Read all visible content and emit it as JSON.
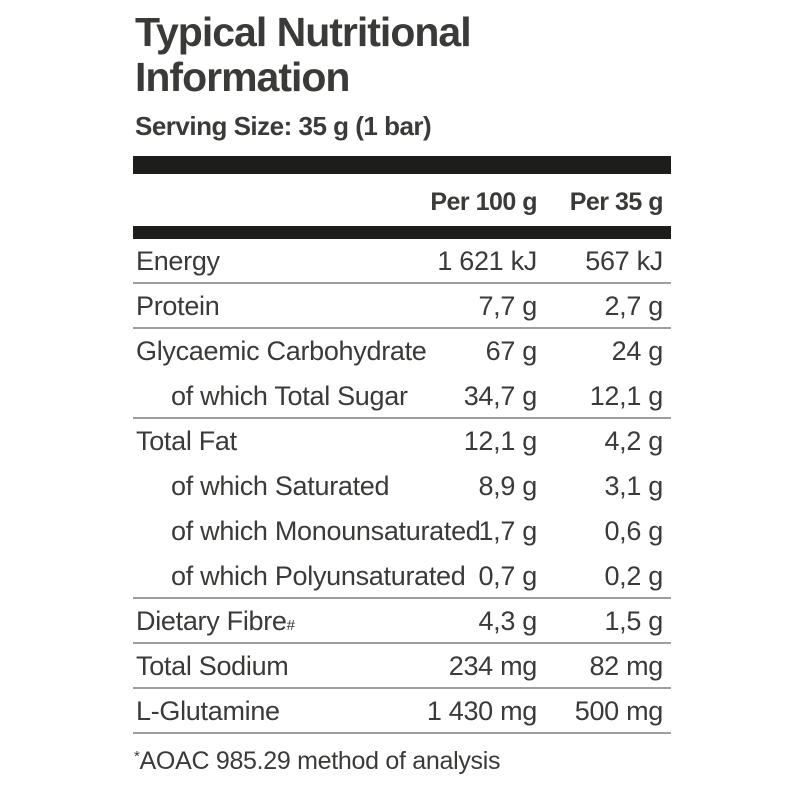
{
  "page": {
    "title": "Typical Nutritional Information",
    "serving_size": "Serving Size: 35 g (1 bar)"
  },
  "table": {
    "col_headers": {
      "per_100": "Per 100 g",
      "per_35": "Per 35 g"
    },
    "rows": [
      {
        "label": "Energy",
        "indent": false,
        "per100": "1 621 kJ",
        "per35": "567 kJ",
        "divider_after": true
      },
      {
        "label": "Protein",
        "indent": false,
        "per100": "7,7 g",
        "per35": "2,7 g",
        "divider_after": true
      },
      {
        "label": "Glycaemic Carbohydrate",
        "indent": false,
        "per100": "67 g",
        "per35": "24 g",
        "divider_after": false
      },
      {
        "label": "of which Total Sugar",
        "indent": true,
        "per100": "34,7 g",
        "per35": "12,1 g",
        "divider_after": true
      },
      {
        "label": "Total Fat",
        "indent": false,
        "per100": "12,1 g",
        "per35": "4,2 g",
        "divider_after": false
      },
      {
        "label": "of which Saturated",
        "indent": true,
        "per100": "8,9 g",
        "per35": "3,1 g",
        "divider_after": false
      },
      {
        "label": "of which Monounsaturated",
        "indent": true,
        "per100": "1,7 g",
        "per35": "0,6 g",
        "divider_after": false
      },
      {
        "label": "of which Polyunsaturated",
        "indent": true,
        "per100": "0,7 g",
        "per35": "0,2 g",
        "divider_after": true
      },
      {
        "label": "Dietary Fibre",
        "label_sup": "#",
        "indent": false,
        "per100": "4,3 g",
        "per35": "1,5 g",
        "divider_after": true
      },
      {
        "label": "Total Sodium",
        "indent": false,
        "per100": "234 mg",
        "per35": "82 mg",
        "divider_after": true
      },
      {
        "label": "L-Glutamine",
        "indent": false,
        "per100": "1 430 mg",
        "per35": "500 mg",
        "divider_after": true
      }
    ]
  },
  "footnote": {
    "marker": "*",
    "text": "AOAC 985.29 method of analysis"
  },
  "colors": {
    "text": "#3a3a38",
    "bar": "#1d1d1b",
    "divider": "#9e9e9c",
    "background": "#ffffff"
  }
}
